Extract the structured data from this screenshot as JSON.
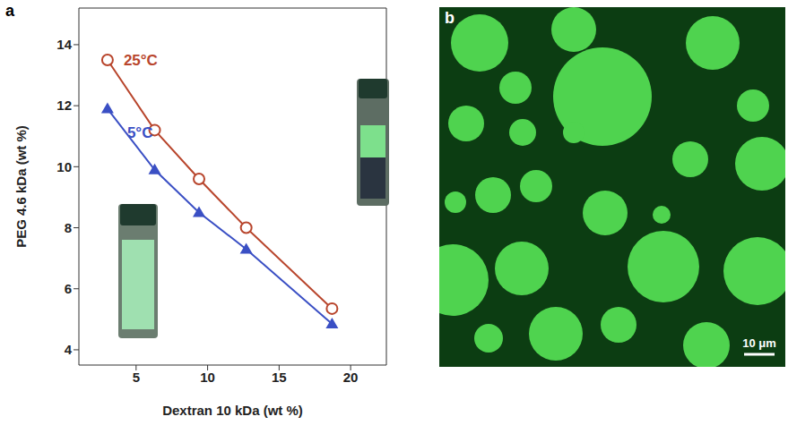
{
  "chart_data": {
    "type": "line",
    "panel": "a",
    "x_label": "Dextran 10 kDa (wt %)",
    "y_label": "PEG 4.6 kDa (wt %)",
    "x": [
      3,
      6.3,
      9.4,
      12.7,
      18.7
    ],
    "xlim": [
      1,
      22.5
    ],
    "xticks": [
      5,
      10,
      15,
      20
    ],
    "ylim": [
      3.5,
      15.2
    ],
    "yticks": [
      4,
      6,
      8,
      10,
      12,
      14
    ],
    "series": [
      {
        "name": "25°C",
        "color": "#b8452c",
        "marker": "open_circle",
        "values": [
          13.5,
          11.2,
          9.6,
          8.0,
          5.35
        ]
      },
      {
        "name": "5°C",
        "color": "#3a4fc4",
        "marker": "triangle",
        "values": [
          11.9,
          9.9,
          8.5,
          7.3,
          4.85
        ]
      }
    ]
  },
  "image": {
    "panel": "b",
    "scale_bar": "10 μm"
  }
}
